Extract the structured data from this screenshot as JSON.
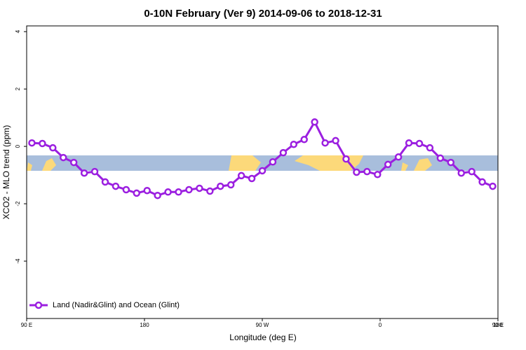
{
  "chart_data": {
    "type": "line",
    "title": "0-10N February (Ver 9)   2014-09-06 to 2018-12-31",
    "x_label": "Longitude (deg E)",
    "y_label": "XCO2 - MLO trend (ppm)",
    "x": [
      94,
      102,
      110,
      118,
      126,
      134,
      142,
      150,
      158,
      166,
      174,
      182,
      190,
      198,
      206,
      214,
      222,
      230,
      238,
      246,
      254,
      262,
      270,
      278,
      286,
      294,
      302,
      310,
      318,
      326,
      334,
      342,
      350,
      358,
      366,
      374,
      382,
      390,
      398,
      406,
      414,
      422,
      430,
      438,
      446
    ],
    "series": [
      {
        "name": "Land (Nadir&Glint) and Ocean (Glint)",
        "color": "#9b1fe0",
        "values": [
          0.12,
          0.1,
          -0.05,
          -0.39,
          -0.56,
          -0.93,
          -0.88,
          -1.24,
          -1.39,
          -1.51,
          -1.63,
          -1.54,
          -1.71,
          -1.59,
          -1.59,
          -1.51,
          -1.46,
          -1.56,
          -1.39,
          -1.34,
          -1.02,
          -1.12,
          -0.85,
          -0.54,
          -0.22,
          0.07,
          0.24,
          0.85,
          0.12,
          0.2,
          -0.44,
          -0.9,
          -0.88,
          -0.98,
          -0.63,
          -0.37,
          0.12,
          0.1,
          -0.05,
          -0.41,
          -0.56,
          -0.93,
          -0.88,
          -1.24,
          -1.39
        ]
      }
    ],
    "xlim": [
      90,
      450
    ],
    "xticks": [
      {
        "value": 90,
        "label": "90 E"
      },
      {
        "value": 180,
        "label": "180"
      },
      {
        "value": 270,
        "label": "90 W"
      },
      {
        "value": 360,
        "label": "0"
      },
      {
        "value": 450,
        "label": "90 E"
      },
      {
        "value": 540,
        "label": "180"
      }
    ],
    "ylim": [
      -6,
      4.2
    ],
    "yticks": [
      -4,
      -2,
      0,
      2,
      4
    ],
    "legend_position": "bottom-left"
  }
}
